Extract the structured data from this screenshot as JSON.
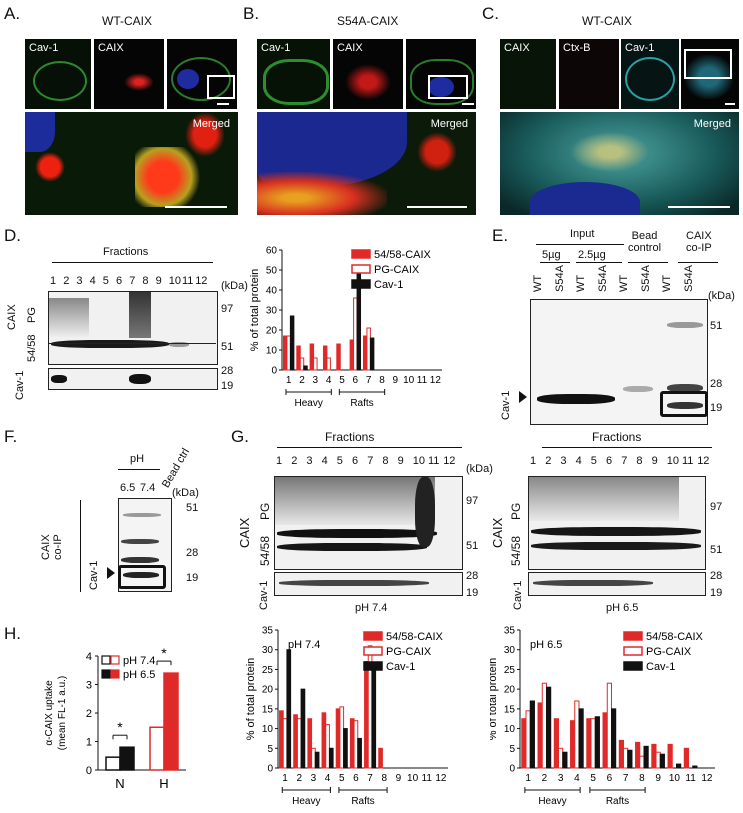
{
  "panelA": {
    "letter": "A.",
    "title": "WT-CAIX",
    "labels": [
      "Cav-1",
      "CAIX"
    ],
    "merged": "Merged"
  },
  "panelB": {
    "letter": "B.",
    "title": "S54A-CAIX",
    "labels": [
      "Cav-1",
      "CAIX"
    ],
    "merged": "Merged"
  },
  "panelC": {
    "letter": "C.",
    "title": "WT-CAIX",
    "labels": [
      "CAIX",
      "Ctx-B",
      "Cav-1"
    ],
    "merged": "Merged"
  },
  "panelD": {
    "letter": "D.",
    "fractions_title": "Fractions",
    "lanes": [
      "1",
      "2",
      "3",
      "4",
      "5",
      "6",
      "7",
      "8",
      "9",
      "10",
      "11",
      "12"
    ],
    "kda": "(kDa)",
    "markers": [
      "97",
      "51",
      "28",
      "19"
    ],
    "caix": "CAIX",
    "pg": "PG",
    "f5458": "54/58",
    "cav1": "Cav-1"
  },
  "panelE": {
    "letter": "E.",
    "groups": [
      "Input",
      "Bead\ncontrol",
      "CAIX\nco-IP"
    ],
    "amounts": [
      "5µg",
      "2.5µg"
    ],
    "lanes": [
      "WT",
      "S54A",
      "WT",
      "S54A",
      "WT",
      "S54A",
      "WT",
      "S54A"
    ],
    "kda": "(kDa)",
    "markers": [
      "51",
      "28",
      "19"
    ],
    "cav1": "Cav-1"
  },
  "panelF": {
    "letter": "F.",
    "ph": "pH",
    "lanes": [
      "6.5",
      "7.4"
    ],
    "bead": "Bead ctrl",
    "kda": "(kDa)",
    "markers": [
      "51",
      "28",
      "19"
    ],
    "coip": "CAIX\nco-IP",
    "cav1": "Cav-1"
  },
  "panelG": {
    "letter": "G.",
    "fractions_title": "Fractions",
    "lanes": [
      "1",
      "2",
      "3",
      "4",
      "5",
      "6",
      "7",
      "8",
      "9",
      "10",
      "11",
      "12"
    ],
    "kda": "(kDa)",
    "markers": [
      "97",
      "51",
      "28",
      "19"
    ],
    "caix": "CAIX",
    "pg": "PG",
    "f5458": "54/58",
    "cav1": "Cav-1",
    "left_ph": "pH 7.4",
    "right_ph": "pH 6.5"
  },
  "panelH": {
    "letter": "H."
  },
  "colors": {
    "red": "#e02a2a",
    "black": "#111111",
    "white": "#ffffff"
  },
  "chart_data": [
    {
      "type": "bar",
      "id": "D-bar",
      "ylabel": "% of total protein",
      "ylim": [
        0,
        60
      ],
      "yticks": [
        0,
        10,
        20,
        30,
        40,
        50,
        60
      ],
      "categories": [
        "1",
        "2",
        "3",
        "4",
        "5",
        "6",
        "7",
        "8",
        "9",
        "10",
        "11",
        "12"
      ],
      "series": [
        {
          "name": "54/58-CAIX",
          "style": "red",
          "values": [
            17,
            12,
            13,
            12,
            13,
            15,
            17,
            0,
            0,
            0,
            0,
            0
          ]
        },
        {
          "name": "PG-CAIX",
          "style": "open",
          "values": [
            17,
            6,
            6,
            6,
            0,
            36,
            21,
            0,
            0,
            0,
            0,
            0
          ]
        },
        {
          "name": "Cav-1",
          "style": "black",
          "values": [
            27,
            2,
            0,
            0,
            0,
            52,
            16,
            0,
            0,
            0,
            0,
            0
          ]
        }
      ],
      "groups": [
        {
          "label": "Heavy",
          "from": 1,
          "to": 4
        },
        {
          "label": "Rafts",
          "from": 5,
          "to": 8
        }
      ]
    },
    {
      "type": "bar",
      "id": "H-bar",
      "ylabel": "α-CAIX uptake\n(mean FL-1 a.u.)",
      "ylim": [
        0,
        4
      ],
      "yticks": [
        0,
        1,
        2,
        3,
        4
      ],
      "categories": [
        "N",
        "H"
      ],
      "series": [
        {
          "name": "pH 7.4",
          "style": "open",
          "values": [
            0.45,
            1.5
          ]
        },
        {
          "name": "pH 6.5",
          "style": "filled",
          "values": [
            0.8,
            3.4
          ]
        }
      ],
      "annotations": [
        "*",
        "*"
      ]
    },
    {
      "type": "bar",
      "id": "G-left-bar",
      "title": "pH 7.4",
      "ylabel": "% of total protein",
      "ylim": [
        0,
        35
      ],
      "yticks": [
        0,
        5,
        10,
        15,
        20,
        25,
        30,
        35
      ],
      "categories": [
        "1",
        "2",
        "3",
        "4",
        "5",
        "6",
        "7",
        "8",
        "9",
        "10",
        "11",
        "12"
      ],
      "series": [
        {
          "name": "54/58-CAIX",
          "style": "red",
          "values": [
            14.5,
            13.5,
            12.5,
            14,
            15,
            12.5,
            27,
            5,
            0,
            0,
            0,
            0
          ]
        },
        {
          "name": "PG-CAIX",
          "style": "open",
          "values": [
            12.5,
            12.5,
            5,
            11,
            15.5,
            12,
            31,
            0,
            0,
            0,
            0,
            0
          ]
        },
        {
          "name": "Cav-1",
          "style": "black",
          "values": [
            30,
            20,
            4,
            5,
            10,
            7.5,
            26,
            0,
            0,
            0,
            0,
            0
          ]
        }
      ],
      "groups": [
        {
          "label": "Heavy",
          "from": 1,
          "to": 4
        },
        {
          "label": "Rafts",
          "from": 5,
          "to": 8
        }
      ]
    },
    {
      "type": "bar",
      "id": "G-right-bar",
      "title": "pH 6.5",
      "ylabel": "% of total protein",
      "ylim": [
        0,
        35
      ],
      "yticks": [
        0,
        5,
        10,
        15,
        20,
        25,
        30,
        35
      ],
      "categories": [
        "1",
        "2",
        "3",
        "4",
        "5",
        "6",
        "7",
        "8",
        "9",
        "10",
        "11",
        "12"
      ],
      "series": [
        {
          "name": "54/58-CAIX",
          "style": "red",
          "values": [
            12.5,
            16.5,
            12.5,
            12,
            12.5,
            14,
            7,
            6.5,
            6,
            6,
            5,
            0
          ]
        },
        {
          "name": "PG-CAIX",
          "style": "open",
          "values": [
            14.5,
            21.5,
            5,
            17,
            12.5,
            21.5,
            5,
            3,
            4,
            0,
            0,
            0
          ]
        },
        {
          "name": "Cav-1",
          "style": "black",
          "values": [
            17,
            20.5,
            4,
            15,
            13,
            15,
            4.5,
            5.5,
            3.5,
            1,
            0.5,
            0
          ]
        }
      ],
      "groups": [
        {
          "label": "Heavy",
          "from": 1,
          "to": 4
        },
        {
          "label": "Rafts",
          "from": 5,
          "to": 8
        }
      ]
    }
  ]
}
